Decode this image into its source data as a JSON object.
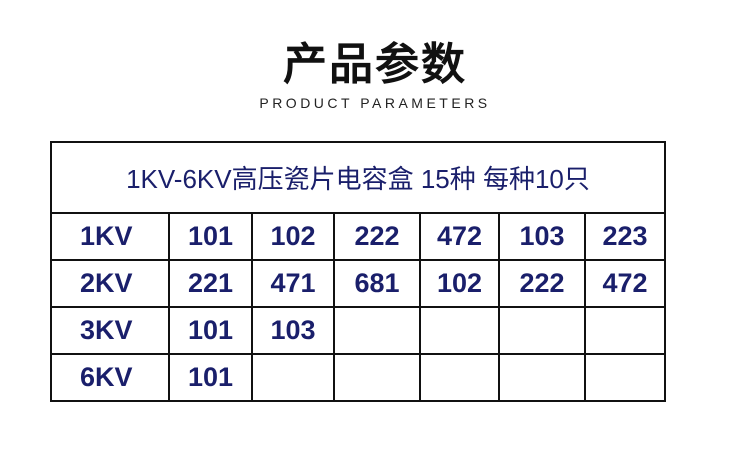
{
  "header": {
    "title": "产品参数",
    "subtitle": "PRODUCT PARAMETERS"
  },
  "table": {
    "caption": "1KV-6KV高压瓷片电容盒 15种 每种10只",
    "rows": [
      {
        "label": "1KV",
        "values": [
          "101",
          "102",
          "222",
          "472",
          "103",
          "223"
        ]
      },
      {
        "label": "2KV",
        "values": [
          "221",
          "471",
          "681",
          "102",
          "222",
          "472"
        ]
      },
      {
        "label": "3KV",
        "values": [
          "101",
          "103",
          "",
          "",
          "",
          ""
        ]
      },
      {
        "label": "6KV",
        "values": [
          "101",
          "",
          "",
          "",
          "",
          ""
        ]
      }
    ]
  },
  "colors": {
    "text": "#1a1f6b",
    "border": "#111111"
  }
}
